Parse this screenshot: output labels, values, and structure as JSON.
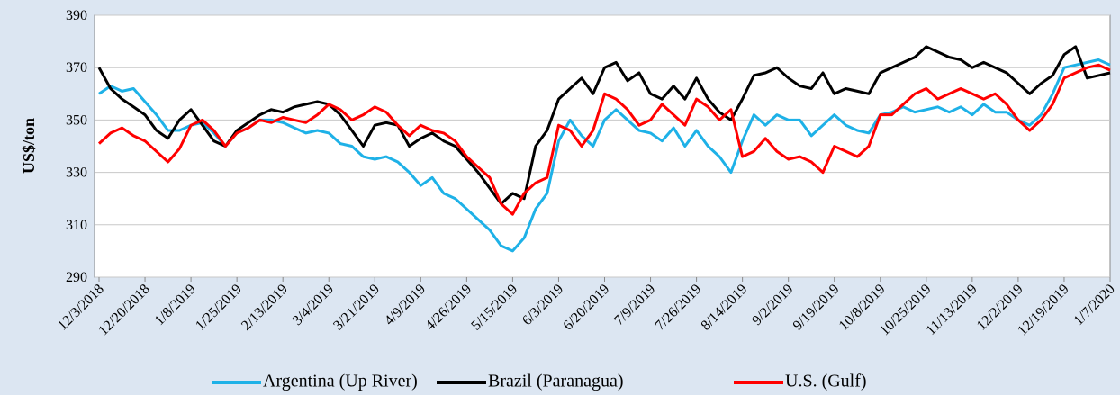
{
  "chart_data": {
    "type": "line",
    "y_label": "US$/ton",
    "categories": [
      "12/3/2018",
      null,
      null,
      null,
      "12/20/2018",
      null,
      null,
      null,
      "1/8/2019",
      null,
      null,
      null,
      "1/25/2019",
      null,
      null,
      null,
      "2/13/2019",
      null,
      null,
      null,
      "3/4/2019",
      null,
      null,
      null,
      "3/21/2019",
      null,
      null,
      null,
      "4/9/2019",
      null,
      null,
      null,
      "4/26/2019",
      null,
      null,
      null,
      "5/15/2019",
      null,
      null,
      null,
      "6/3/2019",
      null,
      null,
      null,
      "6/20/2019",
      null,
      null,
      null,
      "7/9/2019",
      null,
      null,
      null,
      "7/26/2019",
      null,
      null,
      null,
      "8/14/2019",
      null,
      null,
      null,
      "9/2/2019",
      null,
      null,
      null,
      "9/19/2019",
      null,
      null,
      null,
      "10/8/2019",
      null,
      null,
      null,
      "10/25/2019",
      null,
      null,
      null,
      "11/13/2019",
      null,
      null,
      null,
      "12/2/2019",
      null,
      null,
      null,
      "12/19/2019",
      null,
      null,
      null,
      "1/7/2020"
    ],
    "series": [
      {
        "name": "Argentina (Up River)",
        "color": "#1eb1e7",
        "values": [
          360,
          363,
          361,
          362,
          357,
          352,
          346,
          346,
          348,
          349,
          345,
          340,
          345,
          347,
          350,
          350,
          349,
          347,
          345,
          346,
          345,
          341,
          340,
          336,
          335,
          336,
          334,
          330,
          325,
          328,
          322,
          320,
          316,
          312,
          308,
          302,
          300,
          305,
          316,
          322,
          342,
          350,
          344,
          340,
          350,
          354,
          350,
          346,
          345,
          342,
          347,
          340,
          346,
          340,
          336,
          330,
          342,
          352,
          348,
          352,
          350,
          350,
          344,
          348,
          352,
          348,
          346,
          345,
          352,
          353,
          355,
          353,
          354,
          355,
          353,
          355,
          352,
          356,
          353,
          353,
          350,
          348,
          352,
          360,
          370,
          371,
          372,
          373,
          371
        ]
      },
      {
        "name": "Brazil (Paranagua)",
        "color": "#000000",
        "values": [
          370,
          362,
          358,
          355,
          352,
          346,
          343,
          350,
          354,
          348,
          342,
          340,
          346,
          349,
          352,
          354,
          353,
          355,
          356,
          357,
          356,
          352,
          346,
          340,
          348,
          349,
          348,
          340,
          343,
          345,
          342,
          340,
          335,
          330,
          324,
          318,
          322,
          320,
          340,
          346,
          358,
          362,
          366,
          360,
          370,
          372,
          365,
          368,
          360,
          358,
          363,
          358,
          366,
          358,
          353,
          350,
          358,
          367,
          368,
          370,
          366,
          363,
          362,
          368,
          360,
          362,
          361,
          360,
          368,
          370,
          372,
          374,
          378,
          376,
          374,
          373,
          370,
          372,
          370,
          368,
          364,
          360,
          364,
          367,
          375,
          378,
          366,
          367,
          368
        ]
      },
      {
        "name": "U.S. (Gulf)",
        "color": "#ff0000",
        "values": [
          341,
          345,
          347,
          344,
          342,
          338,
          334,
          339,
          348,
          350,
          346,
          340,
          345,
          347,
          350,
          349,
          351,
          350,
          349,
          352,
          356,
          354,
          350,
          352,
          355,
          353,
          348,
          344,
          348,
          346,
          345,
          342,
          336,
          332,
          328,
          318,
          314,
          322,
          326,
          328,
          348,
          346,
          340,
          346,
          360,
          358,
          354,
          348,
          350,
          356,
          352,
          348,
          358,
          355,
          350,
          354,
          336,
          338,
          343,
          338,
          335,
          336,
          334,
          330,
          340,
          338,
          336,
          340,
          352,
          352,
          356,
          360,
          362,
          358,
          360,
          362,
          360,
          358,
          360,
          356,
          350,
          346,
          350,
          356,
          366,
          368,
          370,
          371,
          369
        ]
      }
    ],
    "ylim": [
      290,
      390
    ],
    "yticks": [
      290,
      310,
      330,
      350,
      370,
      390
    ],
    "grid": true
  }
}
